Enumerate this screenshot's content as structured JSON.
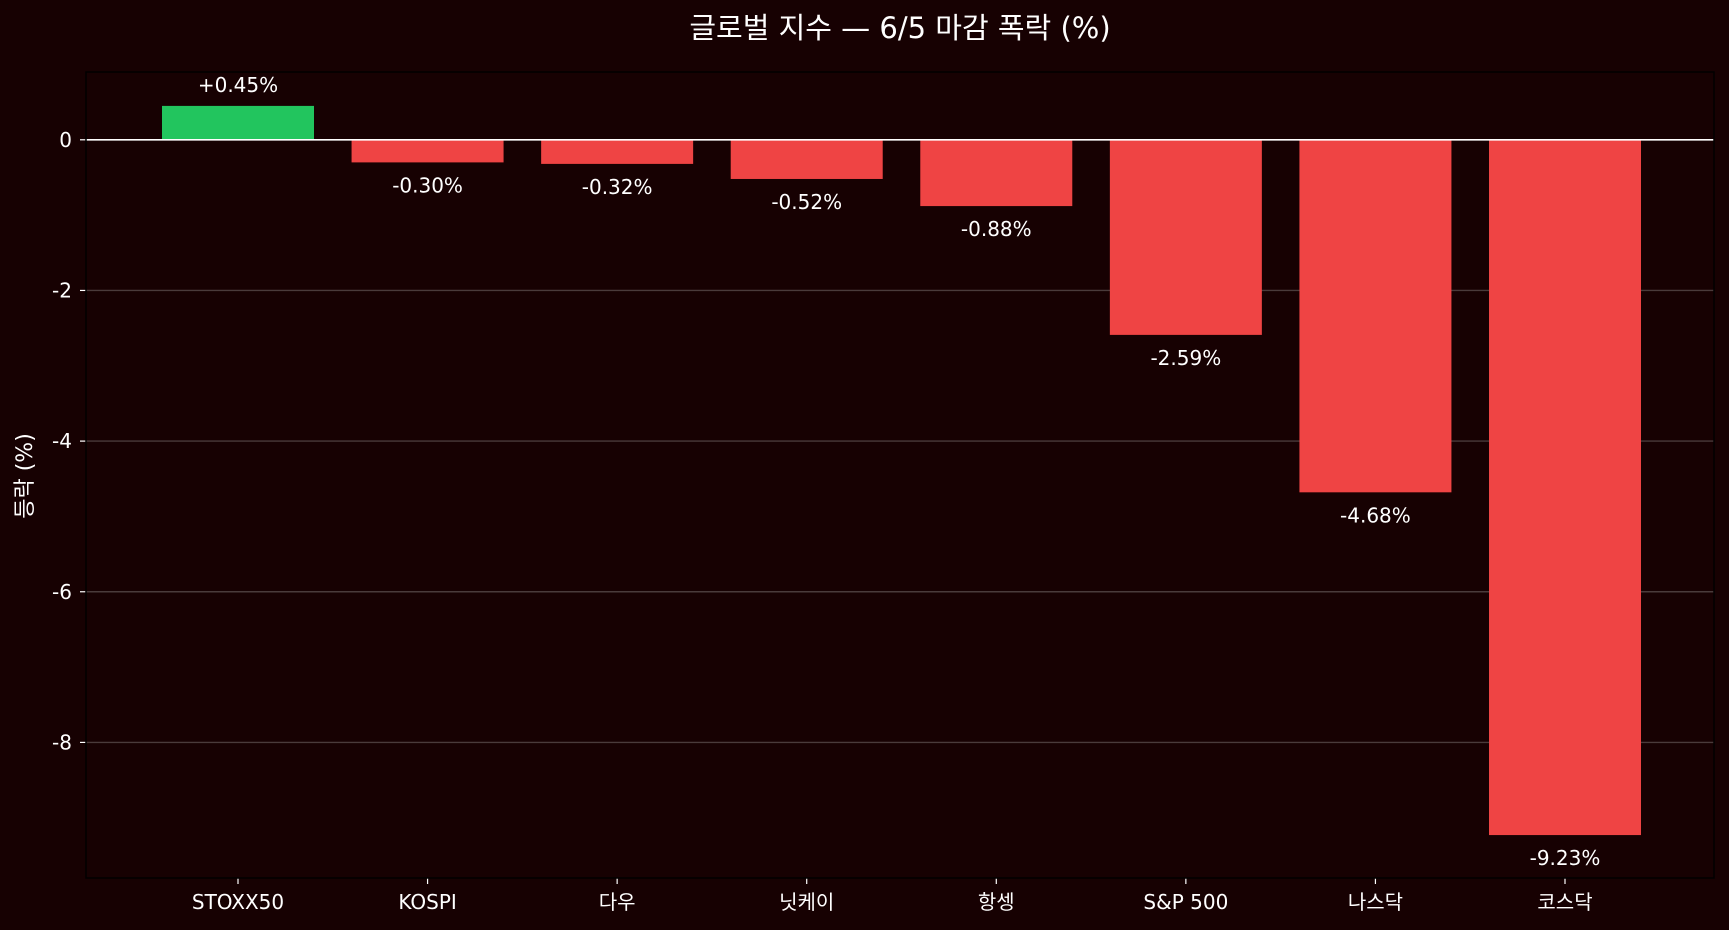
{
  "chart_data": {
    "type": "bar",
    "title": "글로벌 지수 — 6/5 마감 폭락 (%)",
    "xlabel": "",
    "ylabel": "등락 (%)",
    "ylim": [
      -9.8,
      0.9
    ],
    "yticks": [
      0,
      -2,
      -4,
      -6,
      -8
    ],
    "grid": "horizontal",
    "categories": [
      "STOXX50",
      "KOSPI",
      "다우",
      "닛케이",
      "항셍",
      "S&P 500",
      "나스닥",
      "코스닥"
    ],
    "values": [
      0.45,
      -0.3,
      -0.32,
      -0.52,
      -0.88,
      -2.59,
      -4.68,
      -9.23
    ],
    "data_labels": [
      "+0.45%",
      "-0.30%",
      "-0.32%",
      "-0.52%",
      "-0.88%",
      "-2.59%",
      "-4.68%",
      "-9.23%"
    ],
    "colors": {
      "positive": "#22c55e",
      "negative": "#ef4444",
      "background": "#170102",
      "grid": "#4a3b3b",
      "zero_line": "#ffffff",
      "text": "#ffffff"
    }
  }
}
